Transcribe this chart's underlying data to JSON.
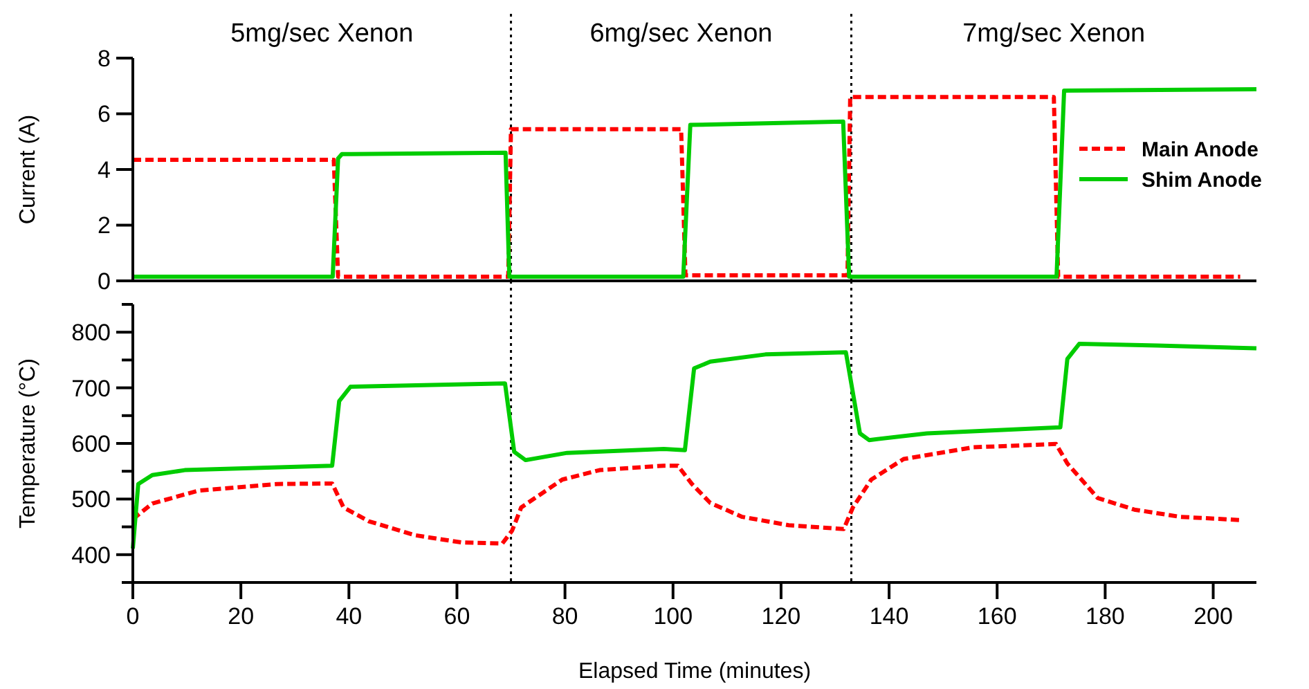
{
  "chart_data": [
    {
      "type": "line",
      "ylabel": "Current (A)",
      "xlim": [
        0,
        208
      ],
      "ylim": [
        0,
        8
      ],
      "yticks": [
        0,
        2,
        4,
        6,
        8
      ],
      "tick_labels": "y",
      "legend": "right",
      "grid": false,
      "marker": "none",
      "annotations": [
        "5mg/sec Xenon",
        "6mg/sec Xenon",
        "7mg/sec Xenon"
      ],
      "ref_lines": [
        {
          "axis": "x",
          "value": 70,
          "color": "#000000",
          "line_style": "dotted"
        },
        {
          "axis": "x",
          "value": 133,
          "color": "#000000",
          "line_style": "dotted"
        }
      ],
      "series": [
        {
          "name": "Main Anode",
          "color": "#ff0000",
          "line_style": "dashed",
          "x": [
            0,
            37.2,
            38,
            69.5,
            70,
            101.5,
            102.3,
            132.3,
            132.8,
            170.5,
            171.3,
            205
          ],
          "values": [
            4.35,
            4.35,
            0.15,
            0.15,
            5.45,
            5.45,
            0.2,
            0.2,
            6.6,
            6.6,
            0.15,
            0.15
          ]
        },
        {
          "name": "Shim Anode",
          "color": "#00cc00",
          "line_style": "solid",
          "x": [
            0,
            37,
            38,
            38.7,
            69,
            69.7,
            101.9,
            103.2,
            131.5,
            132.6,
            171,
            172.4,
            208
          ],
          "values": [
            0.15,
            0.15,
            4.4,
            4.55,
            4.6,
            0.15,
            0.15,
            5.6,
            5.72,
            0.15,
            0.15,
            6.83,
            6.88
          ]
        }
      ]
    },
    {
      "type": "line",
      "xlabel": "Elapsed Time (minutes)",
      "ylabel": "Temperature (°C)",
      "xlim": [
        0,
        208
      ],
      "ylim": [
        350,
        850
      ],
      "xticks": [
        0,
        20,
        40,
        60,
        80,
        100,
        120,
        140,
        160,
        180,
        200
      ],
      "yticks": [
        {
          "value": 350,
          "label": null
        },
        400,
        {
          "value": 450,
          "label": null
        },
        500,
        {
          "value": 550,
          "label": null
        },
        600,
        {
          "value": 650,
          "label": null
        },
        700,
        {
          "value": 750,
          "label": null
        },
        800,
        {
          "value": 850,
          "label": null
        }
      ],
      "grid": false,
      "marker": "none",
      "ref_lines": [
        {
          "axis": "x",
          "value": 70,
          "color": "#000000",
          "line_style": "dotted"
        },
        {
          "axis": "x",
          "value": 133,
          "color": "#000000",
          "line_style": "dotted"
        }
      ],
      "series": [
        {
          "color": "#ff0000",
          "line_style": "dashed",
          "x": [
            0,
            3.6,
            12.1,
            26.6,
            36.9,
            39,
            43.7,
            52.2,
            60.8,
            68.4,
            70.2,
            71.9,
            79.5,
            86.4,
            98.3,
            100.9,
            103.5,
            106.9,
            112.8,
            121.4,
            131.6,
            133.3,
            136.7,
            142.7,
            155.5,
            170.9,
            173,
            178.6,
            185.4,
            193.9,
            205.5
          ],
          "values": [
            464,
            492,
            515,
            527,
            528,
            485,
            460,
            435,
            422,
            420,
            443,
            485,
            535,
            552,
            560,
            560,
            527,
            493,
            468,
            453,
            446,
            485,
            535,
            572,
            593,
            599,
            564,
            502,
            481,
            468,
            462
          ]
        },
        {
          "color": "#00cc00",
          "line_style": "solid",
          "x": [
            0,
            1,
            3.6,
            9.6,
            36.9,
            38.2,
            40.3,
            68.9,
            70.6,
            72.7,
            80.4,
            98.3,
            102.2,
            103.9,
            106.9,
            117.1,
            132,
            134.6,
            136.3,
            147,
            171.7,
            173,
            175.2,
            189.7,
            208
          ],
          "values": [
            411,
            527,
            543,
            552,
            560,
            676,
            702,
            708,
            585,
            570,
            583,
            590,
            588,
            735,
            747,
            760,
            764,
            618,
            606,
            618,
            629,
            752,
            779,
            776,
            771
          ]
        }
      ]
    }
  ]
}
